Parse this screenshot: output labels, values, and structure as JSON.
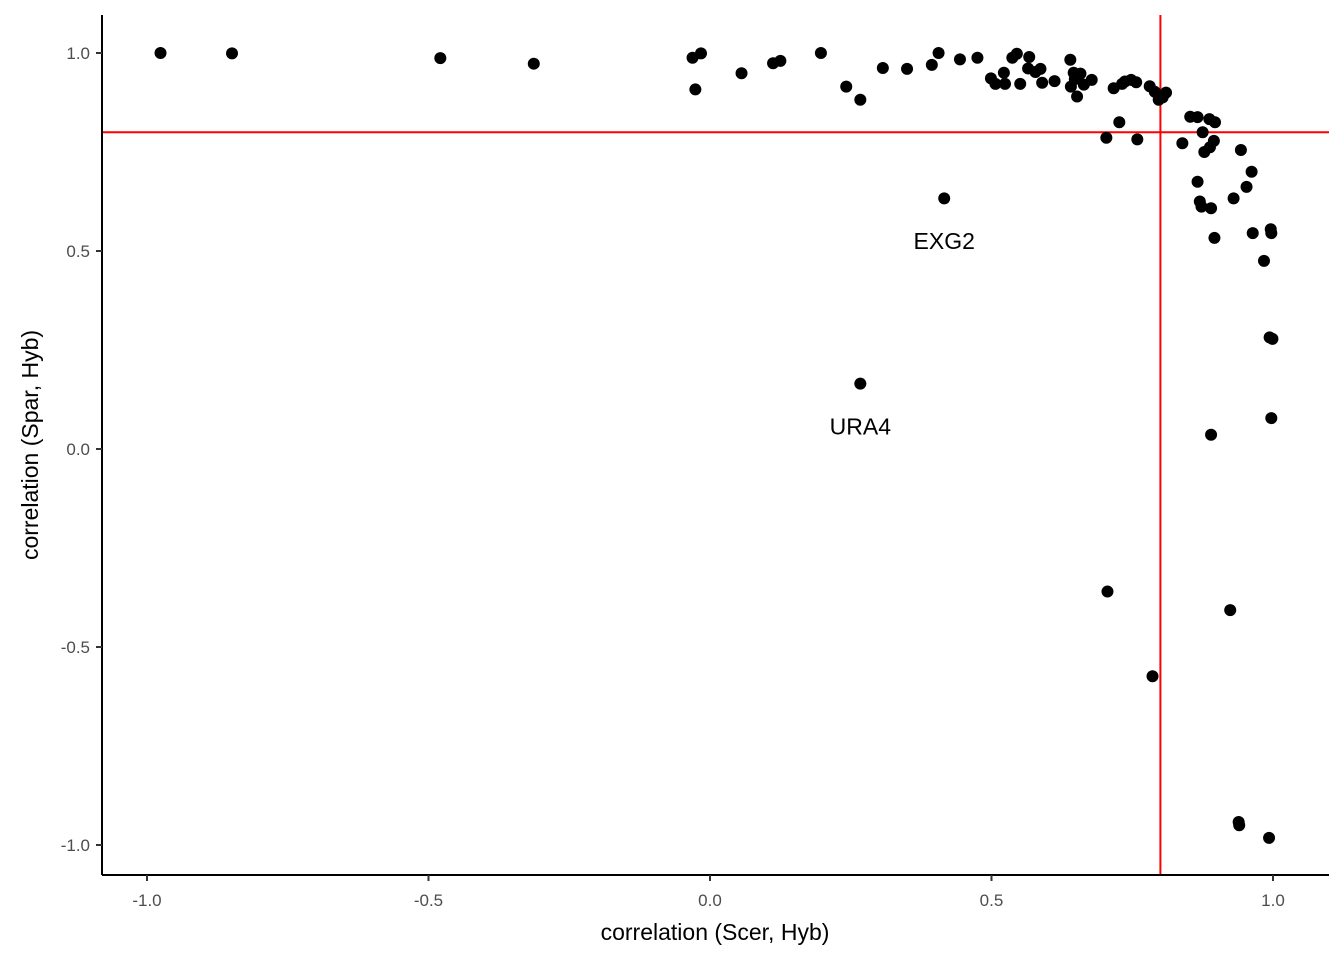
{
  "chart_data": {
    "type": "scatter",
    "title": "",
    "xlabel": "correlation (Scer, Hyb)",
    "ylabel": "correlation (Spar, Hyb)",
    "xlim": [
      -1.0,
      1.0
    ],
    "ylim": [
      -1.0,
      1.0
    ],
    "x_ticks": [
      -1.0,
      -0.5,
      0.0,
      0.5,
      1.0
    ],
    "y_ticks": [
      -1.0,
      -0.5,
      0.0,
      0.5,
      1.0
    ],
    "x_tick_labels": [
      "-1.0",
      "-0.5",
      "0.0",
      "0.5",
      "1.0"
    ],
    "y_tick_labels": [
      "-1.0",
      "-0.5",
      "0.0",
      "0.5",
      "1.0"
    ],
    "grid": false,
    "legend": "none",
    "point_color": "#000000",
    "reference_lines": {
      "x": 0.8,
      "y": 0.8,
      "color": "#ff0000"
    },
    "points": [
      {
        "x": -0.976,
        "y": 1.0
      },
      {
        "x": -0.849,
        "y": 0.999
      },
      {
        "x": -0.479,
        "y": 0.987
      },
      {
        "x": -0.313,
        "y": 0.973
      },
      {
        "x": -0.031,
        "y": 0.988
      },
      {
        "x": -0.016,
        "y": 0.999
      },
      {
        "x": -0.026,
        "y": 0.908
      },
      {
        "x": 0.056,
        "y": 0.949
      },
      {
        "x": 0.112,
        "y": 0.974
      },
      {
        "x": 0.125,
        "y": 0.98
      },
      {
        "x": 0.197,
        "y": 1.0
      },
      {
        "x": 0.242,
        "y": 0.915
      },
      {
        "x": 0.267,
        "y": 0.882
      },
      {
        "x": 0.307,
        "y": 0.962
      },
      {
        "x": 0.35,
        "y": 0.96
      },
      {
        "x": 0.394,
        "y": 0.97
      },
      {
        "x": 0.406,
        "y": 1.0
      },
      {
        "x": 0.444,
        "y": 0.984
      },
      {
        "x": 0.475,
        "y": 0.988
      },
      {
        "x": 0.499,
        "y": 0.936
      },
      {
        "x": 0.507,
        "y": 0.922
      },
      {
        "x": 0.522,
        "y": 0.95
      },
      {
        "x": 0.524,
        "y": 0.922
      },
      {
        "x": 0.537,
        "y": 0.988
      },
      {
        "x": 0.545,
        "y": 0.998
      },
      {
        "x": 0.551,
        "y": 0.922
      },
      {
        "x": 0.565,
        "y": 0.961
      },
      {
        "x": 0.567,
        "y": 0.99
      },
      {
        "x": 0.578,
        "y": 0.952
      },
      {
        "x": 0.587,
        "y": 0.96
      },
      {
        "x": 0.59,
        "y": 0.925
      },
      {
        "x": 0.612,
        "y": 0.929
      },
      {
        "x": 0.64,
        "y": 0.983
      },
      {
        "x": 0.641,
        "y": 0.915
      },
      {
        "x": 0.646,
        "y": 0.95
      },
      {
        "x": 0.648,
        "y": 0.934
      },
      {
        "x": 0.652,
        "y": 0.89
      },
      {
        "x": 0.658,
        "y": 0.948
      },
      {
        "x": 0.664,
        "y": 0.92
      },
      {
        "x": 0.678,
        "y": 0.932
      },
      {
        "x": 0.704,
        "y": 0.786
      },
      {
        "x": 0.717,
        "y": 0.911
      },
      {
        "x": 0.727,
        "y": 0.825
      },
      {
        "x": 0.732,
        "y": 0.922
      },
      {
        "x": 0.737,
        "y": 0.928
      },
      {
        "x": 0.748,
        "y": 0.932
      },
      {
        "x": 0.757,
        "y": 0.926
      },
      {
        "x": 0.759,
        "y": 0.782
      },
      {
        "x": 0.781,
        "y": 0.916
      },
      {
        "x": 0.79,
        "y": 0.902
      },
      {
        "x": 0.797,
        "y": 0.882
      },
      {
        "x": 0.804,
        "y": 0.888
      },
      {
        "x": 0.81,
        "y": 0.9
      },
      {
        "x": 0.839,
        "y": 0.772
      },
      {
        "x": 0.853,
        "y": 0.839
      },
      {
        "x": 0.866,
        "y": 0.838
      },
      {
        "x": 0.866,
        "y": 0.675
      },
      {
        "x": 0.87,
        "y": 0.625
      },
      {
        "x": 0.873,
        "y": 0.612
      },
      {
        "x": 0.875,
        "y": 0.8
      },
      {
        "x": 0.878,
        "y": 0.75
      },
      {
        "x": 0.887,
        "y": 0.833
      },
      {
        "x": 0.888,
        "y": 0.762
      },
      {
        "x": 0.89,
        "y": 0.608
      },
      {
        "x": 0.895,
        "y": 0.778
      },
      {
        "x": 0.896,
        "y": 0.533
      },
      {
        "x": 0.897,
        "y": 0.825
      },
      {
        "x": 0.93,
        "y": 0.633
      },
      {
        "x": 0.943,
        "y": 0.755
      },
      {
        "x": 0.953,
        "y": 0.662
      },
      {
        "x": 0.962,
        "y": 0.7
      },
      {
        "x": 0.964,
        "y": 0.545
      },
      {
        "x": 0.984,
        "y": 0.475
      },
      {
        "x": 0.994,
        "y": 0.282
      },
      {
        "x": 0.996,
        "y": 0.555
      },
      {
        "x": 0.997,
        "y": 0.545
      },
      {
        "x": 0.999,
        "y": 0.278
      },
      {
        "x": 0.997,
        "y": 0.078
      },
      {
        "x": 0.89,
        "y": 0.036
      },
      {
        "x": 0.706,
        "y": -0.36
      },
      {
        "x": 0.924,
        "y": -0.407
      },
      {
        "x": 0.786,
        "y": -0.574
      },
      {
        "x": 0.939,
        "y": -0.942
      },
      {
        "x": 0.94,
        "y": -0.95
      },
      {
        "x": 0.993,
        "y": -0.982
      },
      {
        "x": 0.416,
        "y": 0.633
      },
      {
        "x": 0.267,
        "y": 0.165
      }
    ],
    "annotations": [
      {
        "text": "EXG2",
        "x": 0.416,
        "y": 0.525
      },
      {
        "text": "URA4",
        "x": 0.267,
        "y": 0.057
      }
    ]
  }
}
